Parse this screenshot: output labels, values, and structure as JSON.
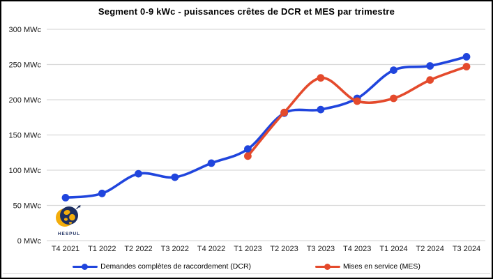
{
  "chart_data": {
    "type": "line",
    "title": "Segment 0-9 kWc - puissances crêtes de DCR et MES par trimestre",
    "categories": [
      "T4 2021",
      "T1 2022",
      "T2 2022",
      "T3 2022",
      "T4 2022",
      "T1 2023",
      "T2 2023",
      "T3 2023",
      "T4 2023",
      "T1 2024",
      "T2 2024",
      "T3 2024"
    ],
    "series": [
      {
        "name": "Demandes complètes de raccordement (DCR)",
        "color": "#2045dd",
        "values": [
          61,
          67,
          95,
          90,
          110,
          130,
          181,
          186,
          202,
          242,
          248,
          261
        ]
      },
      {
        "name": "Mises en service (MES)",
        "color": "#e44a2c",
        "values": [
          null,
          null,
          null,
          null,
          null,
          120,
          182,
          231,
          198,
          202,
          228,
          247
        ]
      }
    ],
    "ylabel": "MWc",
    "ylim": [
      0,
      300
    ],
    "ytick_values": [
      0,
      50,
      100,
      150,
      200,
      250,
      300
    ],
    "ytick_labels": [
      "0 MWc",
      "50 MWc",
      "100 MWc",
      "150 MWc",
      "200 MWc",
      "250 MWc",
      "300 MWc"
    ],
    "grid": "horizontal",
    "line_style": "smoothed",
    "legend_position": "bottom"
  },
  "logo": {
    "text": "HESPUL",
    "navy": "#1c2e60",
    "yellow": "#f3ad0b"
  }
}
